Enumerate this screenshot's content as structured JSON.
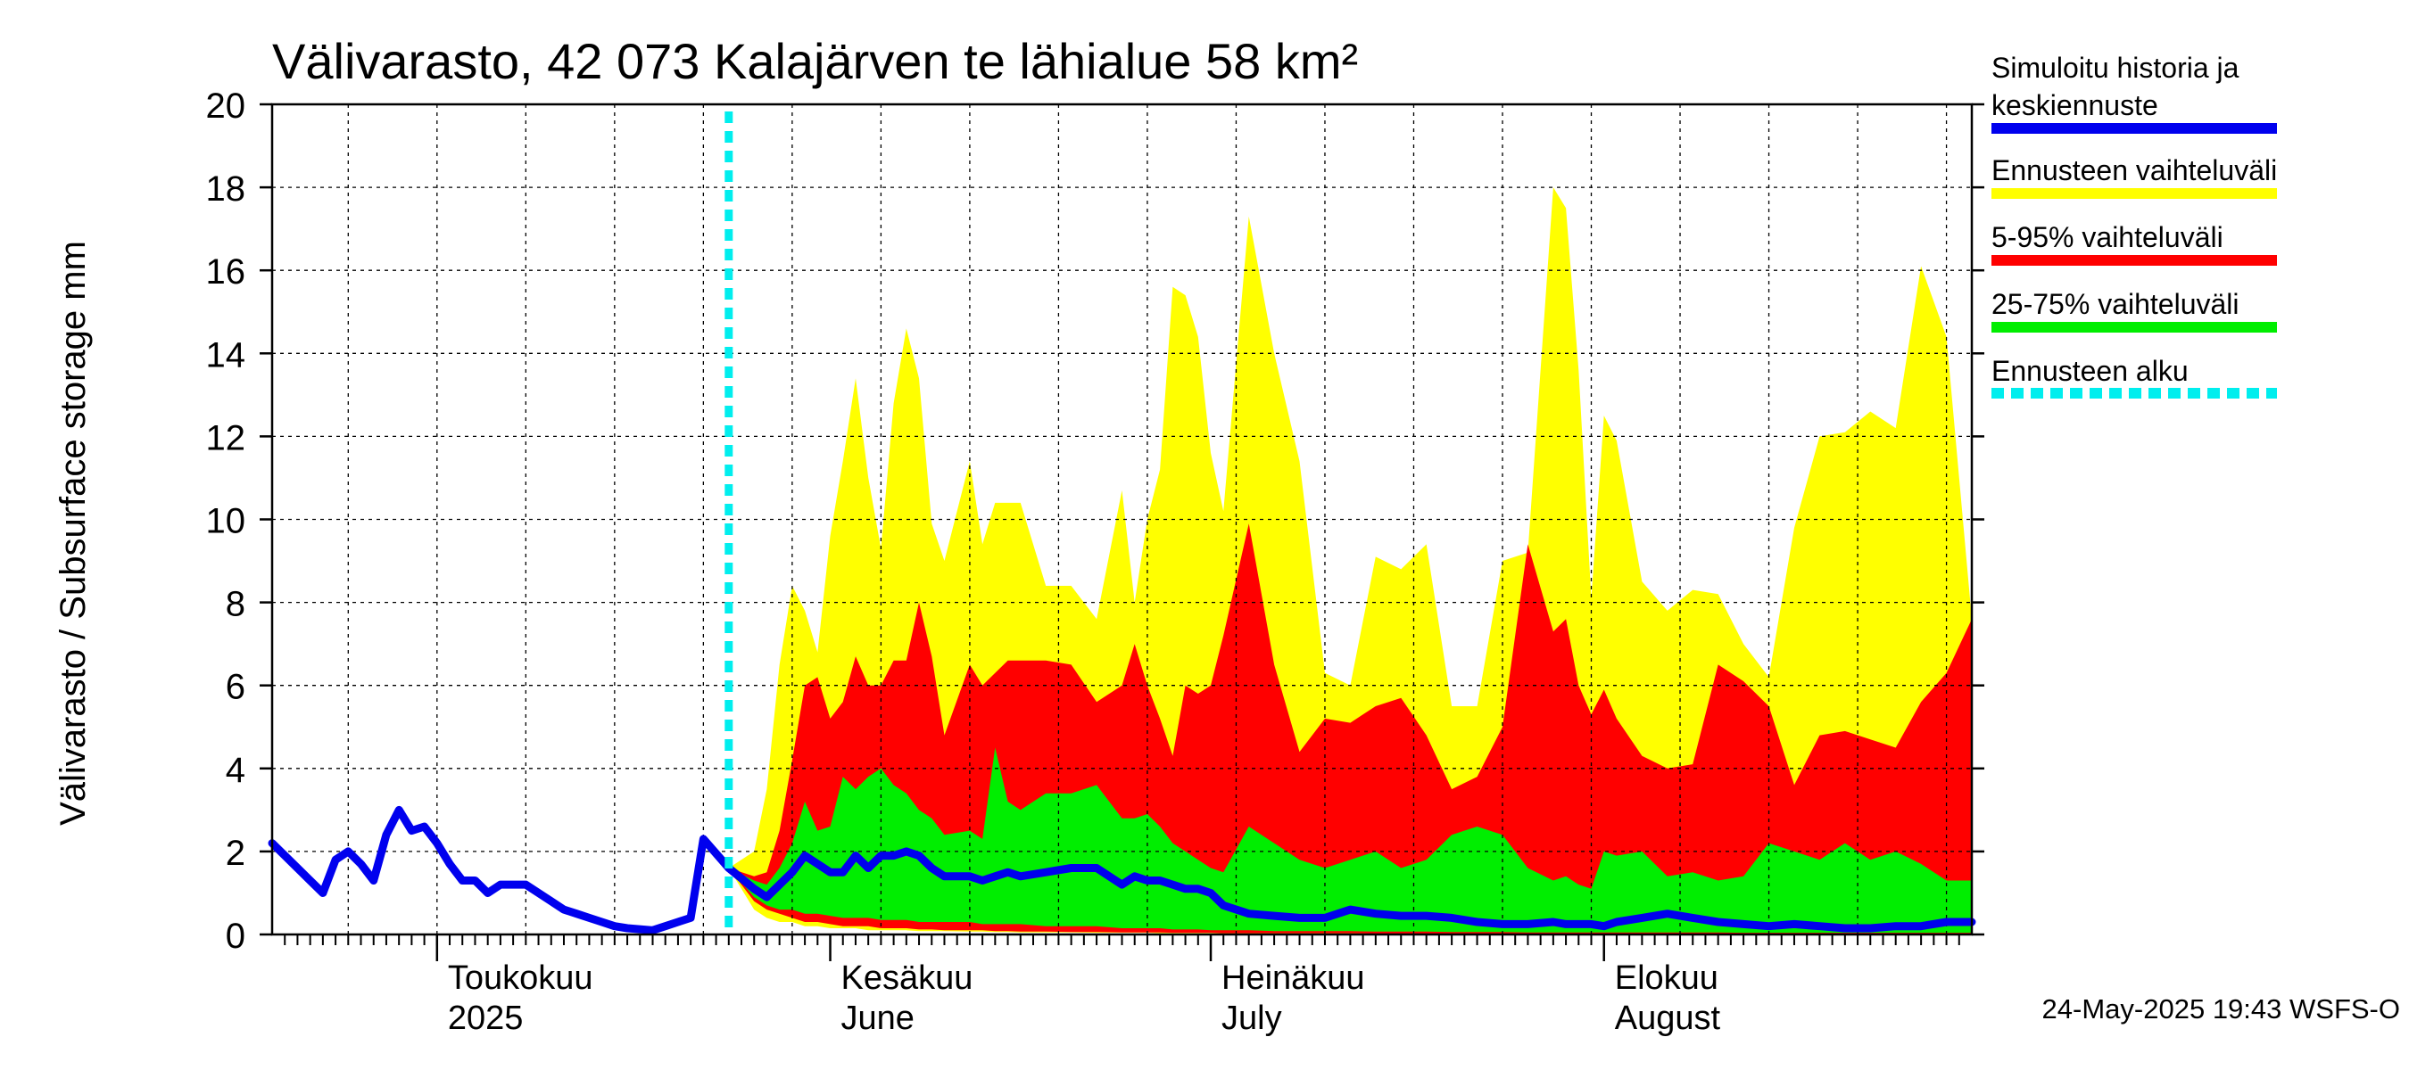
{
  "chart_data": {
    "type": "area",
    "title": "Välivarasto, 42 073 Kalajärven te lähialue 58 km²",
    "ylabel": "Välivarasto / Subsurface storage  mm",
    "ylim": [
      0,
      20
    ],
    "yticks": [
      0,
      2,
      4,
      6,
      8,
      10,
      12,
      14,
      16,
      18,
      20
    ],
    "xlim": [
      "2025-04-18",
      "2025-08-30"
    ],
    "grid": true,
    "month_labels": [
      {
        "date": "2025-05-01",
        "line1": "Toukokuu",
        "line2": "2025"
      },
      {
        "date": "2025-06-01",
        "line1": "Kesäkuu",
        "line2": "June"
      },
      {
        "date": "2025-07-01",
        "line1": "Heinäkuu",
        "line2": "July"
      },
      {
        "date": "2025-08-01",
        "line1": "Elokuu",
        "line2": "August"
      }
    ],
    "forecast_start": "2025-05-24",
    "legend": [
      {
        "label": "Simuloitu historia ja",
        "label2": "keskiennuste",
        "color": "#0000ee",
        "style": "solid"
      },
      {
        "label": "Ennusteen vaihteluväli",
        "color": "#ffff00",
        "style": "solid"
      },
      {
        "label": "5-95% vaihteluväli",
        "color": "#ff0000",
        "style": "solid"
      },
      {
        "label": "25-75% vaihteluväli",
        "color": "#00ee00",
        "style": "solid"
      },
      {
        "label": "Ennusteen alku",
        "color": "#00eeee",
        "style": "dashed"
      }
    ],
    "history": {
      "x": [
        "2025-04-18",
        "2025-04-20",
        "2025-04-21",
        "2025-04-22",
        "2025-04-23",
        "2025-04-24",
        "2025-04-25",
        "2025-04-26",
        "2025-04-27",
        "2025-04-28",
        "2025-04-29",
        "2025-04-30",
        "2025-05-01",
        "2025-05-02",
        "2025-05-03",
        "2025-05-04",
        "2025-05-05",
        "2025-05-06",
        "2025-05-08",
        "2025-05-10",
        "2025-05-11",
        "2025-05-12",
        "2025-05-13",
        "2025-05-14",
        "2025-05-15",
        "2025-05-16",
        "2025-05-18",
        "2025-05-19",
        "2025-05-20",
        "2025-05-21",
        "2025-05-22",
        "2025-05-24"
      ],
      "y": [
        2.2,
        1.6,
        1.3,
        1.0,
        1.8,
        2.0,
        1.7,
        1.3,
        2.4,
        3.0,
        2.5,
        2.6,
        2.2,
        1.7,
        1.3,
        1.3,
        1.0,
        1.2,
        1.2,
        0.8,
        0.6,
        0.5,
        0.4,
        0.3,
        0.2,
        0.15,
        0.1,
        0.2,
        0.3,
        0.4,
        2.3,
        1.6
      ]
    },
    "forecast": {
      "x": [
        "2025-05-24",
        "2025-05-26",
        "2025-05-27",
        "2025-05-28",
        "2025-05-29",
        "2025-05-30",
        "2025-05-31",
        "2025-06-01",
        "2025-06-02",
        "2025-06-03",
        "2025-06-04",
        "2025-06-05",
        "2025-06-06",
        "2025-06-07",
        "2025-06-08",
        "2025-06-09",
        "2025-06-10",
        "2025-06-12",
        "2025-06-13",
        "2025-06-14",
        "2025-06-15",
        "2025-06-16",
        "2025-06-18",
        "2025-06-20",
        "2025-06-22",
        "2025-06-24",
        "2025-06-25",
        "2025-06-26",
        "2025-06-27",
        "2025-06-28",
        "2025-06-29",
        "2025-06-30",
        "2025-07-01",
        "2025-07-02",
        "2025-07-04",
        "2025-07-06",
        "2025-07-08",
        "2025-07-10",
        "2025-07-12",
        "2025-07-14",
        "2025-07-16",
        "2025-07-18",
        "2025-07-20",
        "2025-07-22",
        "2025-07-24",
        "2025-07-26",
        "2025-07-28",
        "2025-07-29",
        "2025-07-30",
        "2025-07-31",
        "2025-08-01",
        "2025-08-02",
        "2025-08-04",
        "2025-08-06",
        "2025-08-08",
        "2025-08-10",
        "2025-08-12",
        "2025-08-14",
        "2025-08-16",
        "2025-08-18",
        "2025-08-20",
        "2025-08-22",
        "2025-08-24",
        "2025-08-26",
        "2025-08-28",
        "2025-08-30"
      ],
      "mean": [
        1.6,
        1.1,
        0.9,
        1.2,
        1.5,
        1.9,
        1.7,
        1.5,
        1.5,
        1.9,
        1.6,
        1.9,
        1.9,
        2.0,
        1.9,
        1.6,
        1.4,
        1.4,
        1.3,
        1.4,
        1.5,
        1.4,
        1.5,
        1.6,
        1.6,
        1.2,
        1.4,
        1.3,
        1.3,
        1.2,
        1.1,
        1.1,
        1.0,
        0.7,
        0.5,
        0.45,
        0.4,
        0.4,
        0.6,
        0.5,
        0.45,
        0.45,
        0.4,
        0.3,
        0.25,
        0.25,
        0.3,
        0.25,
        0.25,
        0.25,
        0.2,
        0.3,
        0.4,
        0.5,
        0.4,
        0.3,
        0.25,
        0.2,
        0.25,
        0.2,
        0.15,
        0.15,
        0.2,
        0.2,
        0.3,
        0.3
      ],
      "p25": [
        1.6,
        0.9,
        0.7,
        0.6,
        0.6,
        0.5,
        0.5,
        0.45,
        0.4,
        0.4,
        0.4,
        0.35,
        0.35,
        0.35,
        0.3,
        0.3,
        0.3,
        0.3,
        0.25,
        0.25,
        0.25,
        0.25,
        0.2,
        0.2,
        0.2,
        0.15,
        0.15,
        0.15,
        0.15,
        0.12,
        0.12,
        0.12,
        0.1,
        0.1,
        0.1,
        0.08,
        0.08,
        0.08,
        0.08,
        0.07,
        0.07,
        0.07,
        0.06,
        0.06,
        0.06,
        0.05,
        0.05,
        0.05,
        0.05,
        0.05,
        0.05,
        0.05,
        0.05,
        0.05,
        0.05,
        0.05,
        0.04,
        0.04,
        0.04,
        0.04,
        0.04,
        0.04,
        0.04,
        0.04,
        0.04,
        0.04
      ],
      "p75": [
        1.6,
        1.3,
        1.2,
        1.6,
        2.2,
        3.2,
        2.5,
        2.6,
        3.8,
        3.5,
        3.8,
        4.0,
        3.6,
        3.4,
        3.0,
        2.8,
        2.4,
        2.5,
        2.3,
        4.5,
        3.2,
        3.0,
        3.4,
        3.4,
        3.6,
        2.8,
        2.8,
        2.9,
        2.6,
        2.2,
        2.0,
        1.8,
        1.6,
        1.5,
        2.6,
        2.2,
        1.8,
        1.6,
        1.8,
        2.0,
        1.6,
        1.8,
        2.4,
        2.6,
        2.4,
        1.6,
        1.3,
        1.4,
        1.2,
        1.1,
        2.0,
        1.9,
        2.0,
        1.4,
        1.5,
        1.3,
        1.4,
        2.2,
        2.0,
        1.8,
        2.2,
        1.8,
        2.0,
        1.7,
        1.3,
        1.3
      ],
      "p5": [
        1.6,
        0.8,
        0.6,
        0.5,
        0.4,
        0.3,
        0.3,
        0.25,
        0.2,
        0.2,
        0.2,
        0.15,
        0.15,
        0.15,
        0.12,
        0.12,
        0.1,
        0.1,
        0.1,
        0.08,
        0.08,
        0.07,
        0.07,
        0.06,
        0.06,
        0.05,
        0.05,
        0.05,
        0.05,
        0.04,
        0.04,
        0.04,
        0.04,
        0.03,
        0.03,
        0.03,
        0.03,
        0.03,
        0.03,
        0.02,
        0.02,
        0.02,
        0.02,
        0.02,
        0.02,
        0.02,
        0.02,
        0.02,
        0.02,
        0.02,
        0.02,
        0.02,
        0.02,
        0.02,
        0.02,
        0.02,
        0.02,
        0.02,
        0.02,
        0.02,
        0.02,
        0.02,
        0.02,
        0.02,
        0.02,
        0.02
      ],
      "p95": [
        1.6,
        1.4,
        1.5,
        2.5,
        4.2,
        6.0,
        6.2,
        5.2,
        5.6,
        6.7,
        6.0,
        6.0,
        6.6,
        6.6,
        8.0,
        6.7,
        4.8,
        6.5,
        6.0,
        6.3,
        6.6,
        6.6,
        6.6,
        6.5,
        5.6,
        6.0,
        7.0,
        6.0,
        5.2,
        4.3,
        6.0,
        5.8,
        6.0,
        7.2,
        9.9,
        6.5,
        4.4,
        5.2,
        5.1,
        5.5,
        5.7,
        4.8,
        3.5,
        3.8,
        5.0,
        9.4,
        7.3,
        7.6,
        6.0,
        5.3,
        5.9,
        5.2,
        4.3,
        4.0,
        4.1,
        6.5,
        6.1,
        5.5,
        3.6,
        4.8,
        4.9,
        4.7,
        4.5,
        5.6,
        6.3,
        7.6
      ],
      "min": [
        1.6,
        0.6,
        0.4,
        0.3,
        0.3,
        0.2,
        0.2,
        0.15,
        0.15,
        0.15,
        0.1,
        0.1,
        0.1,
        0.1,
        0.08,
        0.08,
        0.08,
        0.07,
        0.07,
        0.06,
        0.06,
        0.05,
        0.05,
        0.05,
        0.04,
        0.04,
        0.04,
        0.04,
        0.03,
        0.03,
        0.03,
        0.03,
        0.03,
        0.02,
        0.02,
        0.02,
        0.02,
        0.02,
        0.02,
        0.02,
        0.01,
        0.01,
        0.01,
        0.01,
        0.01,
        0.01,
        0.01,
        0.01,
        0.01,
        0.01,
        0.01,
        0.01,
        0.01,
        0.01,
        0.01,
        0.01,
        0.01,
        0.01,
        0.01,
        0.01,
        0.01,
        0.01,
        0.01,
        0.01,
        0.01,
        0.01
      ],
      "max": [
        1.6,
        2.0,
        3.5,
        6.5,
        8.4,
        7.8,
        6.8,
        9.6,
        11.4,
        13.4,
        11.0,
        9.3,
        12.8,
        14.6,
        13.4,
        9.9,
        9.0,
        11.4,
        9.4,
        10.4,
        10.4,
        10.4,
        8.4,
        8.4,
        7.6,
        10.7,
        8.0,
        10.0,
        11.2,
        15.6,
        15.4,
        14.4,
        11.6,
        10.2,
        17.3,
        14.0,
        11.4,
        6.3,
        6.0,
        9.1,
        8.8,
        9.4,
        5.5,
        5.5,
        9.0,
        9.2,
        18.0,
        17.5,
        13.6,
        8.1,
        12.5,
        11.9,
        8.5,
        7.8,
        8.3,
        8.2,
        7.0,
        6.2,
        9.8,
        12.0,
        12.1,
        12.6,
        12.2,
        16.1,
        14.4,
        7.6
      ]
    }
  },
  "footer": {
    "stamp": "24-May-2025 19:43 WSFS-O"
  }
}
